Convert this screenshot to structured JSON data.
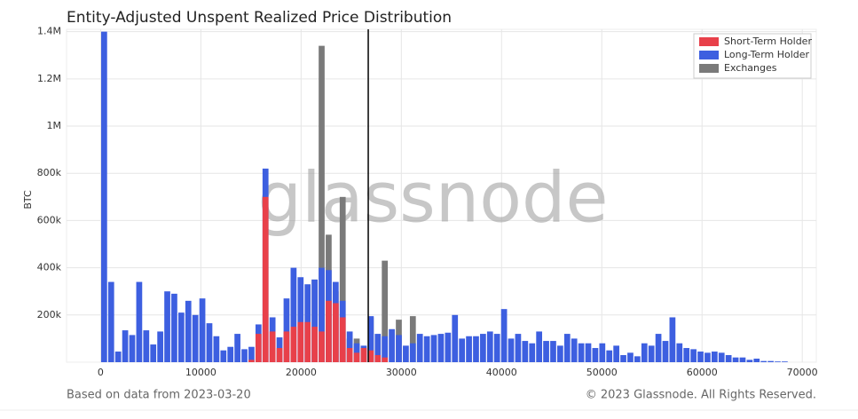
{
  "chart_data": {
    "type": "histogram",
    "title": "Entity-Adjusted Unspent Realized Price Distribution",
    "y_label": "BTC",
    "watermark": "glassnode",
    "footer_left": "Based on data from 2023-03-20",
    "footer_right": "© 2023 Glassnode. All Rights Reserved.",
    "xlim": [
      -3400,
      71400
    ],
    "xticks": [
      0,
      10000,
      20000,
      30000,
      40000,
      50000,
      60000,
      70000
    ],
    "ylim": [
      0,
      1410000
    ],
    "yticks": [
      {
        "value": 200000,
        "label": "200k"
      },
      {
        "value": 400000,
        "label": "400k"
      },
      {
        "value": 600000,
        "label": "600k"
      },
      {
        "value": 800000,
        "label": "800k"
      },
      {
        "value": 1000000,
        "label": "1M"
      },
      {
        "value": 1200000,
        "label": "1.2M"
      },
      {
        "value": 1400000,
        "label": "1.4M"
      }
    ],
    "grid": true,
    "legend": "upper right",
    "reference_line": {
      "x": 26700,
      "color": "#000000"
    },
    "bins": [
      0,
      700,
      1400,
      2100,
      2800,
      3500,
      4200,
      4900,
      5600,
      6300,
      7000,
      7700,
      8400,
      9100,
      9800,
      10500,
      11200,
      11900,
      12600,
      13300,
      14000,
      14700,
      15400,
      16100,
      16800,
      17500,
      18200,
      18900,
      19600,
      20300,
      21000,
      21700,
      22400,
      23100,
      23800,
      24500,
      25200,
      25900,
      26600,
      27300,
      28000,
      28700,
      29400,
      30100,
      30800,
      31500,
      32200,
      32900,
      33600,
      34300,
      35000,
      35700,
      36400,
      37100,
      37800,
      38500,
      39200,
      39900,
      40600,
      41300,
      42000,
      42700,
      43400,
      44100,
      44800,
      45500,
      46200,
      46900,
      47600,
      48300,
      49000,
      49700,
      50400,
      51100,
      51800,
      52500,
      53200,
      53900,
      54600,
      55300,
      56000,
      56700,
      57400,
      58100,
      58800,
      59500,
      60200,
      60900,
      61600,
      62300,
      63000,
      63700,
      64400,
      65100,
      65800,
      66500,
      67200,
      67900,
      68600
    ],
    "series": [
      {
        "name": "Exchanges",
        "color": "#7a7a7a",
        "values": [
          0,
          0,
          0,
          0,
          0,
          0,
          0,
          0,
          0,
          0,
          0,
          0,
          0,
          0,
          0,
          0,
          0,
          0,
          0,
          0,
          0,
          0,
          0,
          0,
          0,
          0,
          0,
          0,
          0,
          0,
          350000,
          1340000,
          540000,
          300000,
          700000,
          100000,
          100000,
          0,
          190000,
          0,
          430000,
          0,
          180000,
          0,
          195000,
          0,
          0,
          0,
          0,
          0,
          0,
          0,
          0,
          0,
          0,
          0,
          0,
          0,
          0,
          0,
          0,
          0,
          0,
          0,
          0,
          0,
          0,
          0,
          0,
          0,
          0,
          0,
          0,
          0,
          0,
          0,
          0,
          0,
          0,
          0,
          0,
          0,
          0,
          0,
          0,
          0,
          0,
          0,
          0,
          0,
          0,
          0,
          0,
          0,
          0,
          0,
          0,
          0
        ]
      },
      {
        "name": "Long-Term Holder",
        "color": "#3d5fe0",
        "values": [
          1400000,
          340000,
          45000,
          135000,
          115000,
          340000,
          135000,
          75000,
          130000,
          300000,
          290000,
          210000,
          260000,
          200000,
          270000,
          165000,
          110000,
          50000,
          65000,
          120000,
          55000,
          65000,
          160000,
          820000,
          190000,
          105000,
          270000,
          400000,
          360000,
          330000,
          350000,
          400000,
          390000,
          340000,
          260000,
          130000,
          80000,
          70000,
          195000,
          120000,
          110000,
          140000,
          115000,
          70000,
          80000,
          120000,
          110000,
          115000,
          120000,
          125000,
          200000,
          100000,
          110000,
          110000,
          120000,
          130000,
          120000,
          225000,
          100000,
          120000,
          90000,
          80000,
          130000,
          90000,
          90000,
          70000,
          120000,
          100000,
          80000,
          80000,
          60000,
          80000,
          50000,
          70000,
          30000,
          40000,
          25000,
          80000,
          70000,
          120000,
          90000,
          190000,
          80000,
          60000,
          55000,
          45000,
          40000,
          45000,
          40000,
          30000,
          20000,
          20000,
          10000,
          15000,
          5000,
          5000,
          3000,
          3000
        ]
      },
      {
        "name": "Short-Term Holder",
        "color": "#e8404a",
        "values": [
          0,
          0,
          0,
          0,
          0,
          0,
          0,
          0,
          0,
          0,
          0,
          0,
          0,
          0,
          0,
          0,
          0,
          0,
          0,
          0,
          0,
          10000,
          120000,
          700000,
          130000,
          60000,
          130000,
          150000,
          170000,
          170000,
          150000,
          130000,
          260000,
          250000,
          190000,
          60000,
          40000,
          60000,
          50000,
          30000,
          20000,
          0,
          0,
          0,
          0,
          0,
          0,
          0,
          0,
          0,
          0,
          0,
          0,
          0,
          0,
          0,
          0,
          0,
          0,
          0,
          0,
          0,
          0,
          0,
          0,
          0,
          0,
          0,
          0,
          0,
          0,
          0,
          0,
          0,
          0,
          0,
          0,
          0,
          0,
          0,
          0,
          0,
          0,
          0,
          0,
          0,
          0,
          0,
          0,
          0,
          0,
          0,
          0,
          0,
          0,
          0,
          0,
          0
        ]
      }
    ]
  }
}
